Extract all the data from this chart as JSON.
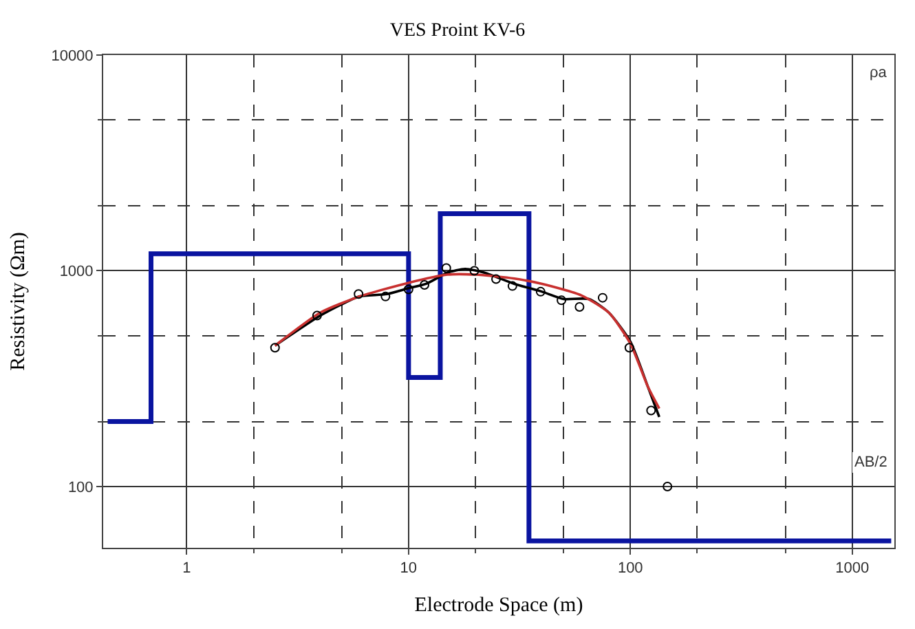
{
  "chart_data": {
    "type": "scatter",
    "title": "VES Proint KV-6",
    "xlabel": "Electrode Space (m)",
    "ylabel": "Resistivity (Ωm)",
    "log": "xy",
    "grid": true,
    "xlim": [
      0.42,
      1550
    ],
    "ylim": [
      52,
      10000
    ],
    "xticks": [
      1,
      {
        "value": 2,
        "label": null
      },
      {
        "value": 5,
        "label": null
      },
      10,
      {
        "value": 20,
        "label": null
      },
      {
        "value": 50,
        "label": null
      },
      100,
      {
        "value": 200,
        "label": null
      },
      {
        "value": 500,
        "label": null
      },
      1000
    ],
    "yticks": [
      100,
      {
        "value": 200,
        "label": null
      },
      {
        "value": 500,
        "label": null
      },
      1000,
      {
        "value": 2000,
        "label": null
      },
      {
        "value": 5000,
        "label": null
      },
      10000
    ],
    "annotations": [
      "ρa",
      "AB/2"
    ],
    "series": [
      {
        "type": "step",
        "color": "#0a14a0",
        "marker": "none",
        "x": [
          0.44,
          0.69,
          10,
          13.9,
          34.9,
          1500
        ],
        "values": [
          200,
          1200,
          320,
          1840,
          56,
          56
        ]
      },
      {
        "type": "line",
        "color": "#000000",
        "marker": "none",
        "x": [
          2.5,
          4,
          5,
          6,
          8,
          10,
          12,
          15,
          18,
          22,
          30,
          40,
          50,
          65,
          80,
          100,
          120,
          135
        ],
        "values": [
          450,
          620,
          700,
          760,
          780,
          830,
          870,
          980,
          1020,
          980,
          870,
          800,
          740,
          740,
          640,
          470,
          290,
          210
        ]
      },
      {
        "type": "line",
        "color": "#c8302f",
        "marker": "none",
        "x": [
          2.5,
          4,
          6,
          10,
          15,
          20,
          30,
          40,
          60,
          80,
          100,
          120,
          135
        ],
        "values": [
          450,
          640,
          760,
          880,
          960,
          960,
          920,
          870,
          770,
          640,
          460,
          290,
          230
        ]
      },
      {
        "color": "#000000",
        "marker": "circle",
        "x": [
          2.5,
          3.87,
          5.95,
          7.87,
          10,
          11.8,
          14.8,
          19.8,
          24.8,
          29.4,
          39.4,
          48.9,
          59,
          75,
          99,
          124,
          147
        ],
        "values": [
          440,
          620,
          780,
          760,
          820,
          860,
          1030,
          1000,
          915,
          850,
          800,
          730,
          680,
          750,
          440,
          225,
          100
        ]
      }
    ]
  }
}
